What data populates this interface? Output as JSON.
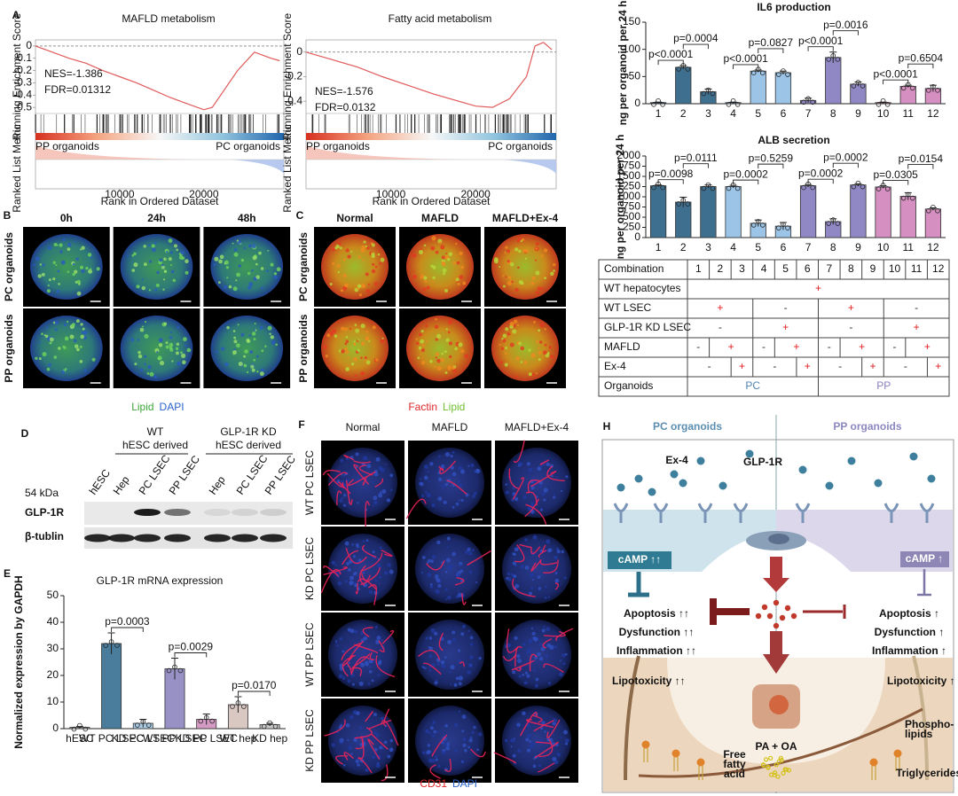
{
  "panel_labels": [
    "A",
    "B",
    "C",
    "D",
    "E",
    "F",
    "H"
  ],
  "chart_data": [
    {
      "type": "line",
      "title": "MAFLD metabolism",
      "annotations": [
        "NES=-1.386",
        "FDR=0.01312"
      ],
      "ylabel": "Running Enrichment Score",
      "ylabel2": "Ranked List Metric",
      "xlabel": "Rank in Ordered Dataset",
      "group_labels": [
        "PP organoids",
        "PC organoids"
      ],
      "color": "#e05a5a",
      "x": [
        0,
        2000,
        4000,
        6000,
        8000,
        10000,
        12000,
        14000,
        16000,
        18000,
        20000,
        21000,
        22000,
        24000,
        26000,
        28000,
        29000
      ],
      "values": [
        0,
        -0.05,
        -0.1,
        -0.14,
        -0.2,
        -0.25,
        -0.3,
        -0.36,
        -0.42,
        -0.47,
        -0.52,
        -0.5,
        -0.4,
        -0.2,
        -0.05,
        -0.1,
        -0.12
      ],
      "xlim": [
        0,
        29500
      ],
      "ylim": [
        -0.55,
        0.05
      ],
      "xticks": [
        10000,
        20000
      ],
      "yticks": [
        0,
        -0.1,
        -0.2,
        -0.3,
        -0.4,
        -0.5
      ]
    },
    {
      "type": "line",
      "title": "Fatty acid metabolism",
      "annotations": [
        "NES=-1.576",
        "FDR=0.0132"
      ],
      "ylabel": "Running Enrichment Score",
      "ylabel2": "Ranked List Metric",
      "xlabel": "Rank in Ordered Dataset",
      "group_labels": [
        "PP organoids",
        "PC organoids"
      ],
      "color": "#e05a5a",
      "x": [
        0,
        3000,
        6000,
        9000,
        12000,
        15000,
        18000,
        20000,
        22000,
        24000,
        26000,
        27000,
        28000,
        29000
      ],
      "values": [
        0,
        -0.06,
        -0.12,
        -0.2,
        -0.27,
        -0.34,
        -0.4,
        -0.44,
        -0.45,
        -0.38,
        -0.2,
        0.05,
        0.08,
        0.02
      ],
      "xlim": [
        0,
        29500
      ],
      "ylim": [
        -0.5,
        0.1
      ],
      "xticks": [
        10000,
        20000
      ],
      "yticks": [
        0,
        -0.2,
        -0.4
      ]
    },
    {
      "type": "bar",
      "title": "IL6 production",
      "ylabel": "ng per organoid per 24 h",
      "categories": [
        "1",
        "2",
        "3",
        "4",
        "5",
        "6",
        "7",
        "8",
        "9",
        "10",
        "11",
        "12"
      ],
      "values": [
        2,
        67,
        22,
        2,
        60,
        57,
        6,
        85,
        36,
        2,
        32,
        28
      ],
      "errors": [
        1,
        3,
        5,
        1,
        2,
        3,
        4,
        10,
        4,
        1,
        2,
        6
      ],
      "colors": [
        "#3f6f8f",
        "#3f6f8f",
        "#3f6f8f",
        "#9cc4e6",
        "#9cc4e6",
        "#9cc4e6",
        "#8f88c4",
        "#8f88c4",
        "#8f88c4",
        "#d58fc0",
        "#d58fc0",
        "#d58fc0"
      ],
      "ylim": [
        0,
        150
      ],
      "yticks": [
        0,
        50,
        100,
        150
      ],
      "annotations": [
        {
          "text": "p<0.0001",
          "between": [
            0,
            1
          ]
        },
        {
          "text": "p=0.0004",
          "between": [
            1,
            2
          ]
        },
        {
          "text": "p<0.0001",
          "between": [
            3,
            4
          ]
        },
        {
          "text": "p=0.0827",
          "between": [
            4,
            5
          ]
        },
        {
          "text": "p<0.0001",
          "between": [
            6,
            7
          ]
        },
        {
          "text": "p=0.0016",
          "between": [
            7,
            8
          ]
        },
        {
          "text": "p<0.0001",
          "between": [
            9,
            10
          ]
        },
        {
          "text": "p=0.6504",
          "between": [
            10,
            11
          ]
        }
      ]
    },
    {
      "type": "bar",
      "title": "ALB secretion",
      "ylabel": "ng per organoid per 24 h",
      "categories": [
        "1",
        "2",
        "3",
        "4",
        "5",
        "6",
        "7",
        "8",
        "9",
        "10",
        "11",
        "12"
      ],
      "values": [
        1270,
        870,
        1250,
        1250,
        350,
        280,
        1270,
        390,
        1290,
        1240,
        1010,
        700
      ],
      "errors": [
        20,
        120,
        40,
        30,
        80,
        90,
        30,
        70,
        30,
        30,
        90,
        30
      ],
      "colors": [
        "#3f6f8f",
        "#3f6f8f",
        "#3f6f8f",
        "#9cc4e6",
        "#9cc4e6",
        "#9cc4e6",
        "#8f88c4",
        "#8f88c4",
        "#8f88c4",
        "#d58fc0",
        "#d58fc0",
        "#d58fc0"
      ],
      "ylim": [
        0,
        2000
      ],
      "yticks": [
        0,
        250,
        500,
        750,
        1000,
        1250,
        1500,
        1750,
        2000
      ],
      "annotations": [
        {
          "text": "p=0.0098",
          "between": [
            0,
            1
          ]
        },
        {
          "text": "p=0.0111",
          "between": [
            1,
            2
          ]
        },
        {
          "text": "p=0.0002",
          "between": [
            3,
            4
          ]
        },
        {
          "text": "p=0.5259",
          "between": [
            4,
            5
          ]
        },
        {
          "text": "p=0.0002",
          "between": [
            6,
            7
          ]
        },
        {
          "text": "p=0.0002",
          "between": [
            7,
            8
          ]
        },
        {
          "text": "p=0.0305",
          "between": [
            9,
            10
          ]
        },
        {
          "text": "p=0.0154",
          "between": [
            10,
            11
          ]
        }
      ]
    },
    {
      "type": "bar",
      "title": "GLP-1R mRNA expression",
      "ylabel": "Normalized expression by GAPDH",
      "categories": [
        "hESC",
        "WT PC LSEC",
        "KD PC LSEC",
        "WT PP LSEC",
        "KD PP LSEC",
        "WT hep",
        "KD hep"
      ],
      "values": [
        0.5,
        32,
        2,
        22.5,
        3.5,
        9,
        1.5
      ],
      "errors": [
        0.3,
        4,
        1.5,
        4,
        2,
        3,
        0.5
      ],
      "colors": [
        "#bdbdbd",
        "#4a7d9c",
        "#a9cbe3",
        "#9891c6",
        "#d39bc3",
        "#d9c8c2",
        "#c8c8c8"
      ],
      "ylim": [
        0,
        50
      ],
      "yticks": [
        0,
        10,
        20,
        30,
        40,
        50
      ],
      "annotations": [
        {
          "text": "p=0.0003",
          "between": [
            1,
            2
          ]
        },
        {
          "text": "p=0.0029",
          "between": [
            3,
            4
          ]
        },
        {
          "text": "p=0.0170",
          "between": [
            5,
            6
          ]
        }
      ]
    }
  ],
  "table": {
    "header": [
      "Combination",
      "1",
      "2",
      "3",
      "4",
      "5",
      "6",
      "7",
      "8",
      "9",
      "10",
      "11",
      "12"
    ],
    "rows": [
      {
        "label": "WT hepatocytes",
        "cells": [
          "+",
          null,
          null,
          null,
          null,
          null,
          null,
          null,
          null,
          null,
          null,
          null
        ]
      },
      {
        "label": "WT LSEC",
        "cells": [
          "+",
          null,
          null,
          "-",
          null,
          null,
          "+",
          null,
          null,
          "-",
          null,
          null
        ]
      },
      {
        "label": "GLP-1R KD LSEC",
        "cells": [
          "-",
          null,
          null,
          "+",
          null,
          null,
          "-",
          null,
          null,
          "+",
          null,
          null
        ]
      },
      {
        "label": "MAFLD",
        "cells": [
          "-",
          "+",
          null,
          "-",
          "+",
          null,
          "-",
          "+",
          null,
          "-",
          "+",
          null
        ]
      },
      {
        "label": "Ex-4",
        "cells": [
          "-",
          null,
          "+",
          "-",
          null,
          "+",
          "-",
          null,
          "+",
          "-",
          null,
          "+"
        ]
      },
      {
        "label": "Organoids",
        "cells": [
          "PC",
          null,
          null,
          null,
          null,
          null,
          "PP",
          null,
          null,
          null,
          null,
          null
        ]
      }
    ],
    "cell_colors": {
      "+": "#e31a1c",
      "-": "#333333",
      "PC": "#4f86b3",
      "PP": "#8b7fc0"
    }
  },
  "microscopy_b": {
    "columns": [
      "0h",
      "24h",
      "48h"
    ],
    "rows": [
      "PC organoids",
      "PP organoids"
    ],
    "legend": [
      "Lipid",
      "DAPI"
    ]
  },
  "microscopy_c": {
    "columns": [
      "Normal",
      "MAFLD",
      "MAFLD+Ex-4"
    ],
    "rows": [
      "PC organoids",
      "PP organoids"
    ],
    "legend": [
      "Factin",
      "Lipid"
    ]
  },
  "microscopy_f": {
    "columns": [
      "Normal",
      "MAFLD",
      "MAFLD+Ex-4"
    ],
    "rows": [
      "WT PC LSEC",
      "KD PC LSEC",
      "WT PP LSEC",
      "KD PP LSEC"
    ],
    "legend": [
      "CD31",
      "DAPI"
    ]
  },
  "western_blot": {
    "groups": [
      {
        "title": "WT",
        "subtitle": "hESC derived"
      },
      {
        "title": "GLP-1R KD",
        "subtitle": "hESC derived"
      }
    ],
    "lanes": [
      "hESC",
      "Hep",
      "PC LSEC",
      "PP LSEC",
      "Hep",
      "PC LSEC",
      "PP LSEC"
    ],
    "marker": "54 kDa",
    "rows": [
      "GLP-1R",
      "β-tublin"
    ]
  },
  "diagram": {
    "headers": [
      "PC organoids",
      "PP organoids"
    ],
    "ligand": "Ex-4",
    "receptor": "GLP-1R",
    "camp": [
      "cAMP ↑↑",
      "cAMP ↑"
    ],
    "effects_left": [
      "Apoptosis ↑↑",
      "Dysfunction ↑↑",
      "Inflammation ↑↑"
    ],
    "effects_right": [
      "Apoptosis ↑",
      "Dysfunction ↑",
      "Inflammation ↑"
    ],
    "lipotoxicity": [
      "Lipotoxicity ↑↑",
      "Lipotoxicity ↑"
    ],
    "phospholipids": [
      "Phospho-",
      "lipids"
    ],
    "stimulus": "PA + OA",
    "free_fatty_acid": [
      "Free",
      "fatty",
      "acid"
    ],
    "triglycerides": "Triglycerides"
  }
}
